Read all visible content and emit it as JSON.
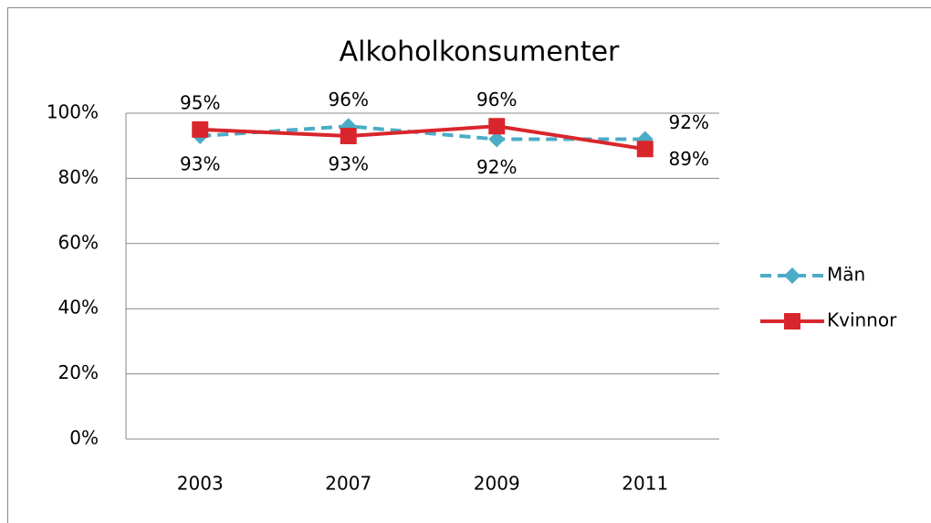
{
  "chart_data": {
    "type": "line",
    "title": "Alkoholkonsumenter",
    "categories": [
      "2003",
      "2007",
      "2009",
      "2011"
    ],
    "series": [
      {
        "name": "Män",
        "color": "#4bacc6",
        "dashed": true,
        "marker": "diamond",
        "values": [
          93,
          96,
          92,
          92
        ],
        "value_labels": [
          "93%",
          "96%",
          "92%",
          "92%"
        ]
      },
      {
        "name": "Kvinnor",
        "color": "#d9262c",
        "dashed": false,
        "marker": "square",
        "values": [
          95,
          93,
          96,
          89
        ],
        "value_labels": [
          "95%",
          "93%",
          "96%",
          "89%"
        ]
      }
    ],
    "ylim": [
      0,
      100
    ],
    "yticks": [
      {
        "value": 0,
        "label": "0%"
      },
      {
        "value": 20,
        "label": "20%"
      },
      {
        "value": 40,
        "label": "40%"
      },
      {
        "value": 60,
        "label": "60%"
      },
      {
        "value": 80,
        "label": "80%"
      },
      {
        "value": 100,
        "label": "100%"
      }
    ],
    "grid": true,
    "legend": "right"
  }
}
